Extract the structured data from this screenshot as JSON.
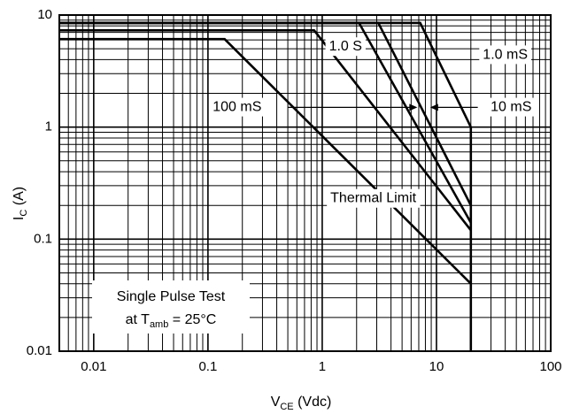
{
  "chart_data": {
    "type": "line",
    "title": "",
    "xlabel": {
      "main": "V",
      "sub": "CE",
      "rest": " (Vdc)"
    },
    "ylabel": {
      "main": "I",
      "sub": "C",
      "rest": " (A)"
    },
    "xscale": "log",
    "yscale": "log",
    "xlim": [
      0.005,
      100
    ],
    "ylim": [
      0.01,
      10
    ],
    "grid": true,
    "x_tick_labels": [
      {
        "v": 0.01,
        "t": "0.01"
      },
      {
        "v": 0.1,
        "t": "0.1"
      },
      {
        "v": 1,
        "t": "1"
      },
      {
        "v": 10,
        "t": "10"
      },
      {
        "v": 100,
        "t": "100"
      }
    ],
    "y_tick_labels": [
      {
        "v": 0.01,
        "t": "0.01"
      },
      {
        "v": 0.1,
        "t": "0.1"
      },
      {
        "v": 1,
        "t": "1"
      },
      {
        "v": 10,
        "t": "10"
      }
    ],
    "series": [
      {
        "points": [
          [
            0.005,
            8.5
          ],
          [
            7.2,
            8.5
          ],
          [
            20,
            1.0
          ],
          [
            20,
            0.01
          ]
        ]
      },
      {
        "points": [
          [
            0.005,
            8.5
          ],
          [
            3.1,
            8.5
          ],
          [
            20,
            0.2
          ]
        ]
      },
      {
        "points": [
          [
            0.005,
            8.5
          ],
          [
            2.1,
            8.5
          ],
          [
            20,
            0.14
          ]
        ]
      },
      {
        "points": [
          [
            0.005,
            7.3
          ],
          [
            0.85,
            7.3
          ],
          [
            20,
            0.12
          ]
        ]
      },
      {
        "points": [
          [
            0.005,
            6.1
          ],
          [
            0.14,
            6.1
          ],
          [
            20,
            0.04
          ]
        ]
      }
    ],
    "annotations": [
      {
        "text": "1.0 S",
        "x": 1.6,
        "y": 5.2
      },
      {
        "text": "1.0 mS",
        "x": 40,
        "y": 4.4
      },
      {
        "text": "100 mS",
        "x": 0.18,
        "y": 1.5
      },
      {
        "text": "10 mS",
        "x": 45,
        "y": 1.5
      },
      {
        "text": "Thermal Limit",
        "x": 2.8,
        "y": 0.23
      }
    ],
    "legend_box": {
      "line1": "Single Pulse Test",
      "line2": {
        "main": "at T",
        "sub": "amb",
        "rest": " = 25°C"
      }
    }
  }
}
